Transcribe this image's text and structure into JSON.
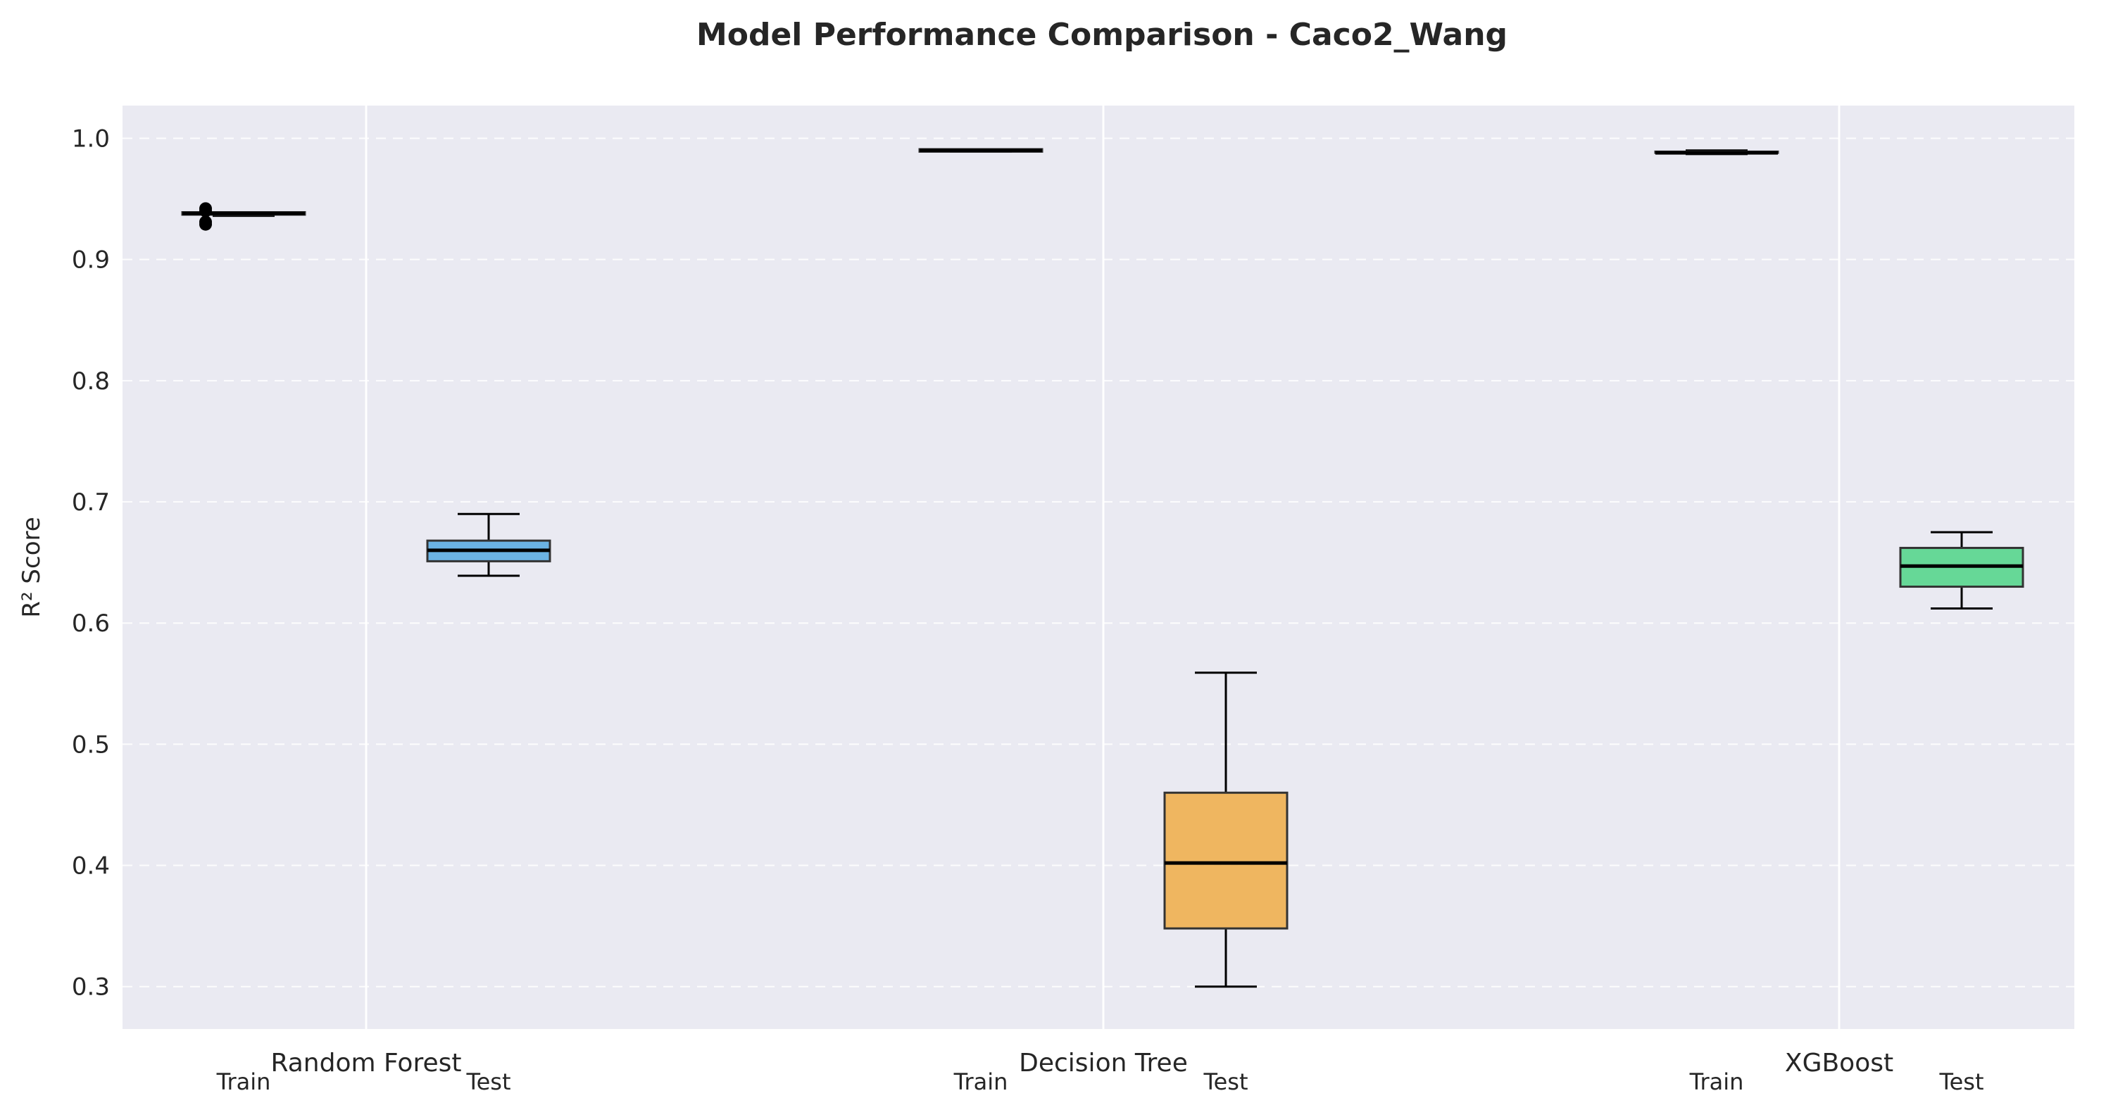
{
  "chart_data": {
    "type": "box",
    "title": "Model Performance Comparison - Caco2_Wang",
    "xlabel": "",
    "ylabel": "R² Score",
    "ylim": [
      0.265,
      1.027
    ],
    "yticks": [
      "0.3",
      "0.4",
      "0.5",
      "0.6",
      "0.7",
      "0.8",
      "0.9",
      "1.0"
    ],
    "grid": true,
    "categories": [
      "Random Forest",
      "Decision Tree",
      "XGBoost"
    ],
    "sub_labels": [
      "Train",
      "Test"
    ],
    "colors": {
      "Random Forest": "#5dade2",
      "Decision Tree": "#f0b050",
      "XGBoost": "#58d68d",
      "background": "#eaeaf2",
      "grid": "#ffffff"
    },
    "boxes": [
      {
        "model": "Random Forest",
        "split": "Train",
        "whisker_low": 0.936,
        "q1": 0.937,
        "median": 0.938,
        "q3": 0.939,
        "whisker_high": 0.939,
        "outliers": [
          0.929,
          0.931,
          0.94,
          0.942
        ]
      },
      {
        "model": "Random Forest",
        "split": "Test",
        "whisker_low": 0.639,
        "q1": 0.651,
        "median": 0.66,
        "q3": 0.668,
        "whisker_high": 0.69,
        "outliers": []
      },
      {
        "model": "Decision Tree",
        "split": "Train",
        "whisker_low": 0.989,
        "q1": 0.989,
        "median": 0.99,
        "q3": 0.991,
        "whisker_high": 0.991,
        "outliers": []
      },
      {
        "model": "Decision Tree",
        "split": "Test",
        "whisker_low": 0.3,
        "q1": 0.348,
        "median": 0.402,
        "q3": 0.46,
        "whisker_high": 0.559,
        "outliers": []
      },
      {
        "model": "XGBoost",
        "split": "Train",
        "whisker_low": 0.987,
        "q1": 0.988,
        "median": 0.988,
        "q3": 0.989,
        "whisker_high": 0.99,
        "outliers": []
      },
      {
        "model": "XGBoost",
        "split": "Test",
        "whisker_low": 0.612,
        "q1": 0.63,
        "median": 0.647,
        "q3": 0.662,
        "whisker_high": 0.675,
        "outliers": []
      }
    ]
  }
}
